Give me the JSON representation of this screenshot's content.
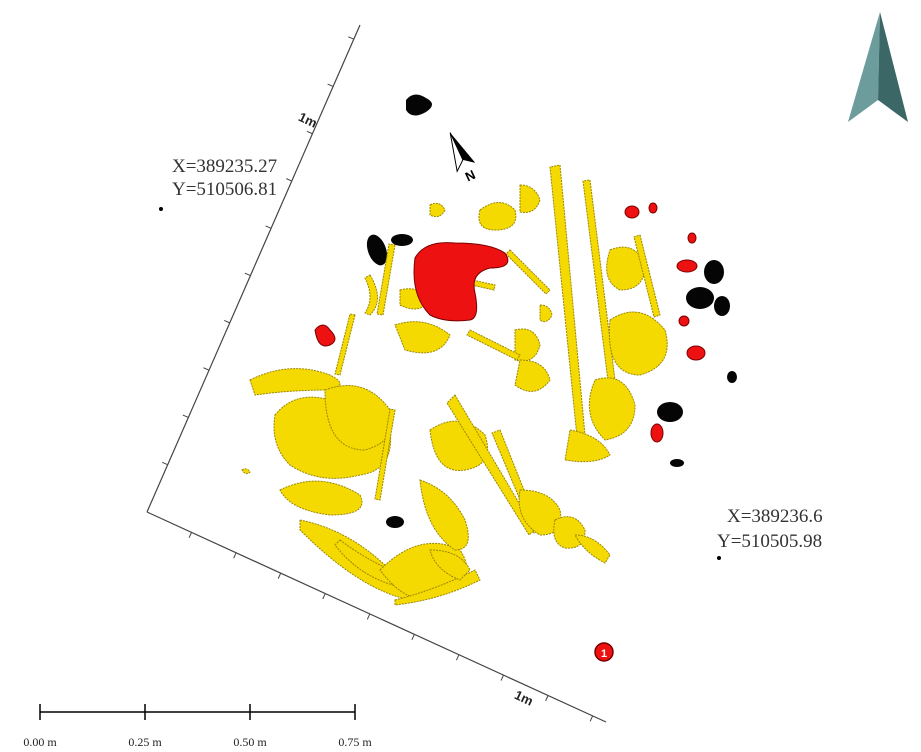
{
  "coordinates": {
    "top_left": {
      "x": "X=389235.27",
      "y": "Y=510506.81"
    },
    "bottom_right": {
      "x": "X=389236.6",
      "y": "Y=510505.98"
    }
  },
  "axis_labels": {
    "left": "1m",
    "bottom": "1m"
  },
  "north_arrow_letter": "N",
  "marker": "1",
  "scale_bar": {
    "labels": [
      "0.00 m",
      "0.25 m",
      "0.50 m",
      "0.75 m"
    ]
  }
}
